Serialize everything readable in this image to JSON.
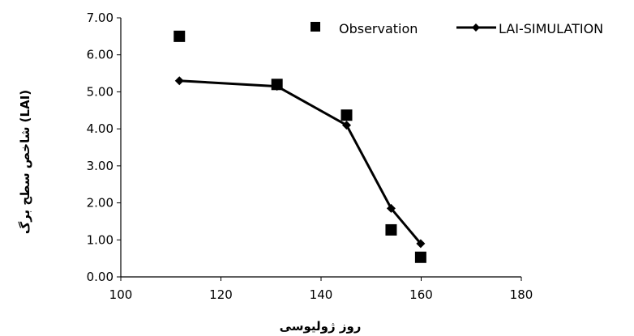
{
  "chart_data": {
    "type": "scatter",
    "title": "",
    "xlabel": "روز ژولیوسی",
    "ylabel": "شاخص سطح برگ (LAI)",
    "xlim": [
      100,
      180
    ],
    "ylim": [
      0,
      7
    ],
    "x_ticks": [
      100,
      120,
      140,
      160,
      180
    ],
    "y_ticks": [
      "0.00",
      "1.00",
      "2.00",
      "3.00",
      "4.00",
      "5.00",
      "6.00",
      "7.00"
    ],
    "grid": false,
    "legend_position": "top-right",
    "series": [
      {
        "name": "Observation",
        "mark": "square",
        "color": "#000000",
        "x": [
          111.7,
          131.2,
          145.1,
          154.0,
          159.9
        ],
        "y": [
          6.5,
          5.2,
          4.37,
          1.27,
          0.53
        ]
      },
      {
        "name": "LAI-SIMULATION",
        "mark": "line-diamond",
        "color": "#000000",
        "x": [
          111.7,
          131.2,
          145.1,
          154.0,
          159.9
        ],
        "y": [
          5.3,
          5.15,
          4.1,
          1.85,
          0.9
        ]
      }
    ]
  }
}
